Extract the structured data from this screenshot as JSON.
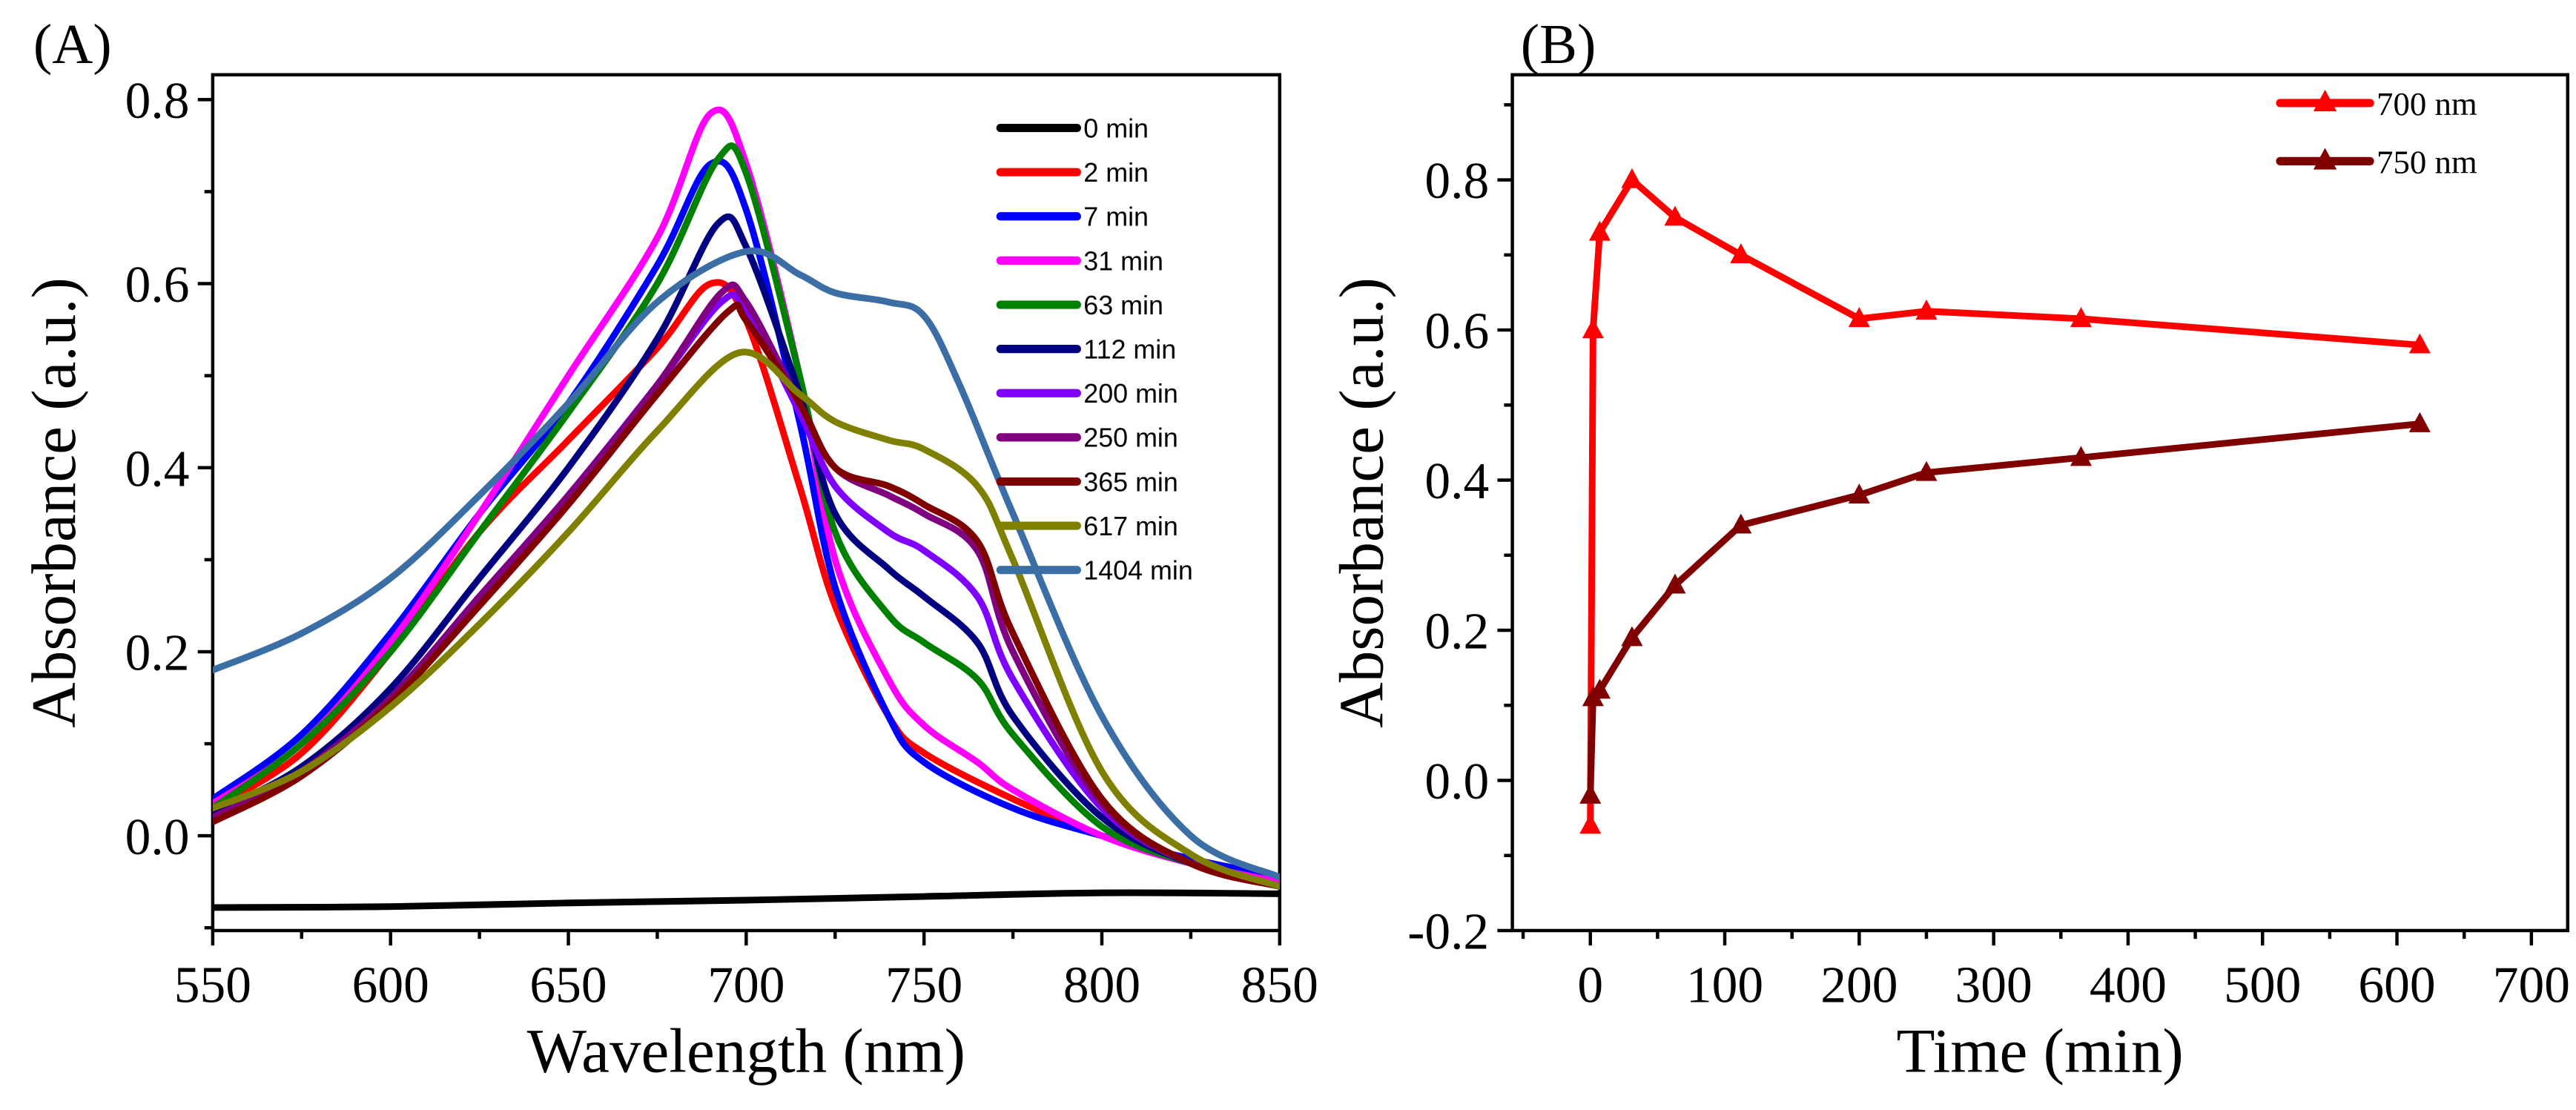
{
  "chart_data": [
    {
      "panel_label": "(A)",
      "type": "line",
      "xlabel": "Wavelength (nm)",
      "ylabel": "Absorbance (a.u.)",
      "xlim": [
        550,
        850
      ],
      "ylim": [
        -0.103,
        0.827
      ],
      "xticks": [
        550,
        600,
        650,
        700,
        750,
        800,
        850
      ],
      "xtick_labels": [
        "550",
        "600",
        "650",
        "700",
        "750",
        "800",
        "850"
      ],
      "yticks": [
        0,
        0.2,
        0.4,
        0.6,
        0.8
      ],
      "ytick_labels": [
        "0.0",
        "0.2",
        "0.4",
        "0.6",
        "0.8"
      ],
      "grid": false,
      "legend": "top-right",
      "series": [
        {
          "name": "0 min",
          "color": "#000000",
          "x": [
            550,
            600,
            650,
            700,
            750,
            800,
            850
          ],
          "y": [
            -0.078,
            -0.077,
            -0.073,
            -0.07,
            -0.066,
            -0.062,
            -0.063
          ]
        },
        {
          "name": "2 min",
          "color": "#ff0000",
          "x": [
            550,
            575,
            600,
            625,
            650,
            675,
            690,
            700,
            715,
            725,
            740,
            750,
            775,
            800,
            825,
            850
          ],
          "y": [
            0.03,
            0.09,
            0.2,
            0.33,
            0.43,
            0.53,
            0.6,
            0.56,
            0.38,
            0.25,
            0.13,
            0.09,
            0.04,
            0.0,
            -0.025,
            -0.045
          ]
        },
        {
          "name": "7 min",
          "color": "#0000ff",
          "x": [
            550,
            575,
            600,
            625,
            650,
            675,
            690,
            700,
            715,
            725,
            740,
            750,
            775,
            800,
            825,
            850
          ],
          "y": [
            0.04,
            0.11,
            0.22,
            0.35,
            0.47,
            0.62,
            0.73,
            0.68,
            0.45,
            0.27,
            0.13,
            0.08,
            0.03,
            0.0,
            -0.025,
            -0.045
          ]
        },
        {
          "name": "31 min",
          "color": "#ff00ff",
          "x": [
            550,
            575,
            600,
            625,
            650,
            675,
            690,
            700,
            715,
            725,
            740,
            750,
            765,
            775,
            800,
            825,
            850
          ],
          "y": [
            0.035,
            0.1,
            0.21,
            0.35,
            0.5,
            0.65,
            0.785,
            0.73,
            0.5,
            0.3,
            0.17,
            0.12,
            0.08,
            0.05,
            0.0,
            -0.03,
            -0.05
          ]
        },
        {
          "name": "63 min",
          "color": "#008000",
          "x": [
            550,
            575,
            600,
            625,
            650,
            675,
            692,
            700,
            715,
            725,
            740,
            750,
            765,
            775,
            800,
            825,
            850
          ],
          "y": [
            0.03,
            0.1,
            0.2,
            0.33,
            0.46,
            0.6,
            0.735,
            0.72,
            0.5,
            0.33,
            0.24,
            0.21,
            0.17,
            0.11,
            0.01,
            -0.03,
            -0.055
          ]
        },
        {
          "name": "112 min",
          "color": "#000080",
          "x": [
            550,
            575,
            600,
            625,
            650,
            675,
            692,
            700,
            715,
            725,
            740,
            750,
            765,
            775,
            800,
            825,
            850
          ],
          "y": [
            0.025,
            0.075,
            0.16,
            0.28,
            0.4,
            0.54,
            0.665,
            0.64,
            0.48,
            0.35,
            0.29,
            0.26,
            0.21,
            0.13,
            0.02,
            -0.03,
            -0.055
          ]
        },
        {
          "name": "200 min",
          "color": "#8000ff",
          "x": [
            550,
            575,
            600,
            625,
            650,
            675,
            693,
            700,
            715,
            725,
            740,
            750,
            765,
            775,
            800,
            825,
            850
          ],
          "y": [
            0.02,
            0.07,
            0.15,
            0.26,
            0.37,
            0.49,
            0.58,
            0.57,
            0.46,
            0.38,
            0.33,
            0.31,
            0.26,
            0.17,
            0.03,
            -0.03,
            -0.055
          ]
        },
        {
          "name": "250 min",
          "color": "#800080",
          "x": [
            550,
            575,
            600,
            625,
            650,
            675,
            693,
            700,
            715,
            725,
            740,
            750,
            765,
            775,
            800,
            825,
            850
          ],
          "y": [
            0.02,
            0.07,
            0.15,
            0.26,
            0.37,
            0.49,
            0.59,
            0.58,
            0.47,
            0.4,
            0.37,
            0.35,
            0.31,
            0.2,
            0.035,
            -0.03,
            -0.055
          ]
        },
        {
          "name": "365 min",
          "color": "#800000",
          "x": [
            550,
            575,
            600,
            625,
            650,
            675,
            695,
            700,
            715,
            725,
            740,
            750,
            765,
            775,
            800,
            825,
            850
          ],
          "y": [
            0.015,
            0.065,
            0.145,
            0.25,
            0.36,
            0.48,
            0.57,
            0.56,
            0.47,
            0.4,
            0.38,
            0.36,
            0.32,
            0.22,
            0.04,
            -0.03,
            -0.055
          ]
        },
        {
          "name": "617 min",
          "color": "#808000",
          "x": [
            550,
            575,
            600,
            625,
            650,
            675,
            698,
            715,
            725,
            740,
            750,
            765,
            775,
            800,
            825,
            850
          ],
          "y": [
            0.03,
            0.07,
            0.14,
            0.23,
            0.33,
            0.44,
            0.525,
            0.48,
            0.45,
            0.43,
            0.42,
            0.38,
            0.3,
            0.07,
            -0.02,
            -0.055
          ]
        },
        {
          "name": "1404 min",
          "color": "#3a6ea5",
          "x": [
            550,
            575,
            600,
            625,
            650,
            675,
            700,
            715,
            725,
            740,
            750,
            760,
            775,
            800,
            825,
            850
          ],
          "y": [
            0.18,
            0.22,
            0.28,
            0.37,
            0.47,
            0.58,
            0.635,
            0.61,
            0.59,
            0.58,
            0.565,
            0.49,
            0.35,
            0.13,
            0.0,
            -0.045
          ]
        }
      ]
    },
    {
      "panel_label": "(B)",
      "type": "line",
      "marker": "triangle",
      "xlabel": "Time (min)",
      "ylabel": "Absorbance (a.u.)",
      "xlim": [
        -58,
        727
      ],
      "ylim": [
        -0.2,
        0.94
      ],
      "xticks": [
        0,
        100,
        200,
        300,
        400,
        500,
        600,
        700
      ],
      "xtick_labels": [
        "0",
        "100",
        "200",
        "300",
        "400",
        "500",
        "600",
        "700"
      ],
      "yticks": [
        -0.2,
        0,
        0.2,
        0.4,
        0.6,
        0.8
      ],
      "ytick_labels": [
        "-0.2",
        "0.0",
        "0.2",
        "0.4",
        "0.6",
        "0.8"
      ],
      "grid": false,
      "legend": "top-right",
      "series": [
        {
          "name": "700 nm",
          "color": "#ff0000",
          "x": [
            0,
            2,
            7,
            31,
            63,
            112,
            200,
            250,
            365,
            617
          ],
          "y": [
            -0.06,
            0.6,
            0.73,
            0.8,
            0.75,
            0.7,
            0.615,
            0.625,
            0.615,
            0.58
          ]
        },
        {
          "name": "750 nm",
          "color": "#800000",
          "x": [
            0,
            2,
            7,
            31,
            63,
            112,
            200,
            250,
            365,
            617
          ],
          "y": [
            -0.02,
            0.11,
            0.12,
            0.19,
            0.26,
            0.34,
            0.38,
            0.41,
            0.43,
            0.475
          ]
        }
      ]
    }
  ]
}
